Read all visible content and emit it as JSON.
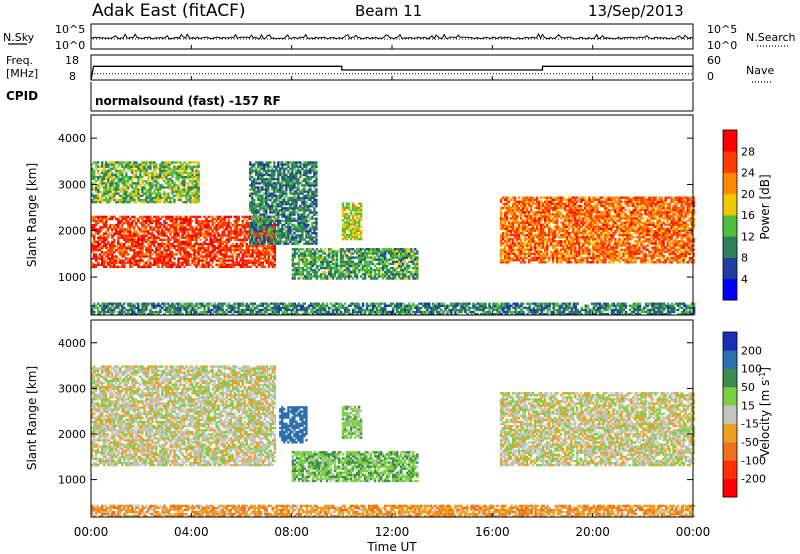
{
  "header": {
    "station": "Adak East (fitACF)",
    "beam": "Beam 11",
    "date": "13/Sep/2013"
  },
  "info_panels": {
    "noise": {
      "left_label": "N.Sky",
      "right_label": "N.Search",
      "left_ticks": [
        "10^5",
        "10^0"
      ],
      "right_ticks": [
        "10^5",
        "10^0"
      ]
    },
    "frequency": {
      "left_label_lines": [
        "Freq.",
        "[MHz]"
      ],
      "right_label": "Nave",
      "left_ticks": [
        "18",
        "8"
      ],
      "right_ticks": [
        "60",
        "0"
      ]
    },
    "cpid": {
      "label": "CPID",
      "value": "normalsound (fast) -157 RF"
    }
  },
  "x_axis": {
    "label": "Time UT",
    "ticks": [
      "00:00",
      "04:00",
      "08:00",
      "12:00",
      "16:00",
      "20:00",
      "00:00"
    ]
  },
  "colors": {
    "power_scale": [
      "#0000ff",
      "#1e3fa0",
      "#2e7d5b",
      "#4fbf3f",
      "#f0c800",
      "#ff8c00",
      "#ff3c00",
      "#ff0000"
    ],
    "velocity_scale": [
      "#1a2fb4",
      "#2a6fb0",
      "#3f8a50",
      "#7ad040",
      "#c4c4c0",
      "#f0a020",
      "#f07020",
      "#ff3000",
      "#ff0000"
    ]
  },
  "chart_data": [
    {
      "type": "line",
      "panel": "noise",
      "title": "",
      "series": [
        {
          "name": "N.Sky",
          "style": "solid"
        },
        {
          "name": "N.Search",
          "style": "dotted"
        }
      ]
    },
    {
      "type": "line",
      "panel": "frequency",
      "x_unit": "hours UT",
      "series": [
        {
          "name": "Freq.",
          "style": "solid",
          "x": [
            0.0,
            0.1,
            10.0,
            10.0,
            18.0,
            18.0,
            24.0
          ],
          "y": [
            8,
            13.5,
            13.5,
            12.0,
            12.0,
            13.5,
            13.5
          ]
        },
        {
          "name": "Nave",
          "style": "dotted",
          "x": [
            0.0,
            24.0
          ],
          "y": [
            15,
            15
          ]
        }
      ]
    },
    {
      "type": "heatmap",
      "panel": "power",
      "ylabel": "Slant Range [km]",
      "xlabel": "Time UT",
      "xlim_hours": [
        0,
        24
      ],
      "ylim": [
        180,
        4500
      ],
      "yticks": [
        1000,
        2000,
        3000,
        4000
      ],
      "colorbar": {
        "label": "Power [dB]",
        "ticks": [
          4,
          8,
          12,
          16,
          20,
          24,
          28
        ],
        "range": [
          0,
          32
        ]
      },
      "echo_regions": [
        {
          "t_start": 0.0,
          "t_end": 7.3,
          "range_lo": 1200,
          "range_hi": 2300,
          "typical_power": 27
        },
        {
          "t_start": 0.0,
          "t_end": 4.3,
          "range_lo": 2600,
          "range_hi": 3500,
          "typical_power": 14
        },
        {
          "t_start": 6.3,
          "t_end": 9.0,
          "range_lo": 1700,
          "range_hi": 3500,
          "typical_power": 10
        },
        {
          "t_start": 8.0,
          "t_end": 13.0,
          "range_lo": 950,
          "range_hi": 1600,
          "typical_power": 12
        },
        {
          "t_start": 10.0,
          "t_end": 10.8,
          "range_lo": 1800,
          "range_hi": 2600,
          "typical_power": 17
        },
        {
          "t_start": 16.3,
          "t_end": 24.0,
          "range_lo": 1300,
          "range_hi": 2700,
          "typical_power": 24
        },
        {
          "t_start": 0.0,
          "t_end": 24.0,
          "range_lo": 180,
          "range_hi": 420,
          "typical_power": 10
        }
      ]
    },
    {
      "type": "heatmap",
      "panel": "velocity",
      "ylabel": "Slant Range [km]",
      "xlabel": "Time UT",
      "xlim_hours": [
        0,
        24
      ],
      "ylim": [
        180,
        4500
      ],
      "yticks": [
        1000,
        2000,
        3000,
        4000
      ],
      "colorbar": {
        "label": "Velocity [m s-1]",
        "ticks": [
          200,
          100,
          50,
          15,
          -15,
          -50,
          -100,
          -200
        ]
      },
      "echo_regions": [
        {
          "t_start": 0.0,
          "t_end": 7.3,
          "range_lo": 1300,
          "range_hi": 3500,
          "typical_velocity": 0
        },
        {
          "t_start": 7.5,
          "t_end": 8.6,
          "range_lo": 1800,
          "range_hi": 2600,
          "typical_velocity": 150
        },
        {
          "t_start": 8.0,
          "t_end": 13.0,
          "range_lo": 950,
          "range_hi": 1600,
          "typical_velocity": 40
        },
        {
          "t_start": 10.0,
          "t_end": 10.8,
          "range_lo": 1900,
          "range_hi": 2600,
          "typical_velocity": 30
        },
        {
          "t_start": 16.3,
          "t_end": 24.0,
          "range_lo": 1300,
          "range_hi": 2900,
          "typical_velocity": 0
        },
        {
          "t_start": 0.0,
          "t_end": 24.0,
          "range_lo": 180,
          "range_hi": 450,
          "typical_velocity": -40
        }
      ]
    }
  ]
}
